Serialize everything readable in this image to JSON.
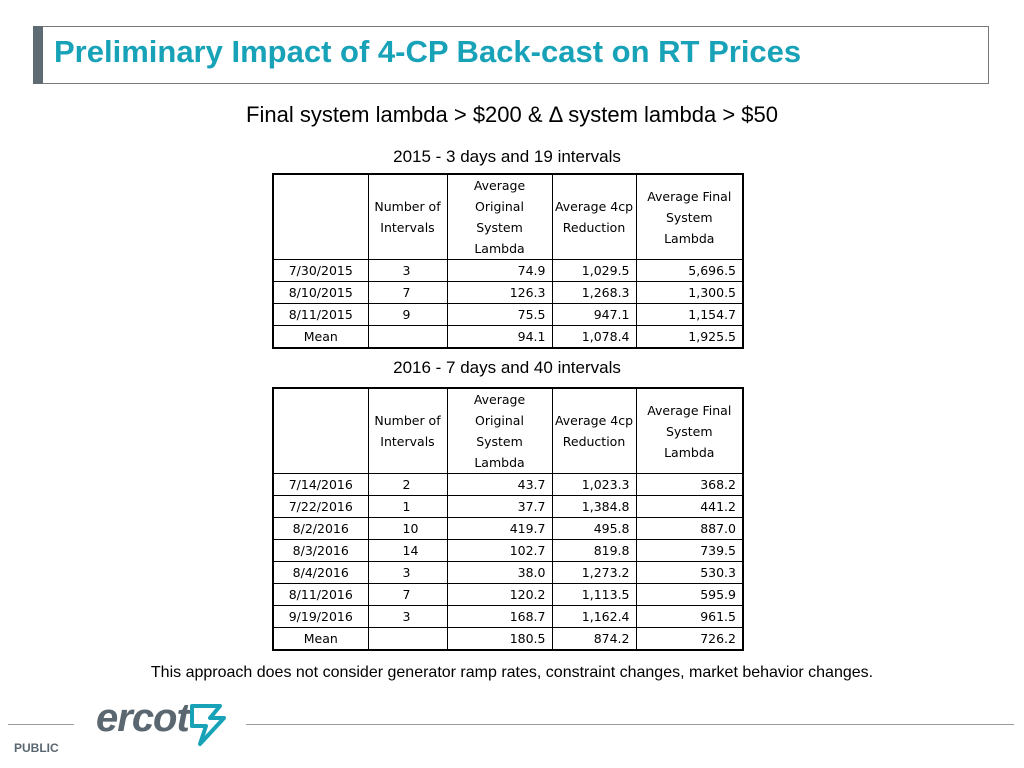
{
  "title": "Preliminary Impact of 4-CP Back-cast on RT Prices",
  "subtitle": "Final system lambda > $200 & Δ system lambda > $50",
  "table_headers": {
    "intervals": [
      "Number of",
      "Intervals"
    ],
    "avg_original": [
      "Average",
      "Original",
      "System Lambda"
    ],
    "avg_reduction": [
      "Average 4cp",
      "Reduction"
    ],
    "avg_final": [
      "Average Final",
      "System",
      "Lambda"
    ]
  },
  "sections": [
    {
      "heading": "2015 - 3 days and 19 intervals",
      "rows": [
        {
          "date": "7/30/2015",
          "intervals": "3",
          "original": "74.9",
          "reduction": "1,029.5",
          "final": "5,696.5"
        },
        {
          "date": "8/10/2015",
          "intervals": "7",
          "original": "126.3",
          "reduction": "1,268.3",
          "final": "1,300.5"
        },
        {
          "date": "8/11/2015",
          "intervals": "9",
          "original": "75.5",
          "reduction": "947.1",
          "final": "1,154.7"
        }
      ],
      "mean": {
        "label": "Mean",
        "original": "94.1",
        "reduction": "1,078.4",
        "final": "1,925.5"
      }
    },
    {
      "heading": "2016 - 7 days and 40 intervals",
      "rows": [
        {
          "date": "7/14/2016",
          "intervals": "2",
          "original": "43.7",
          "reduction": "1,023.3",
          "final": "368.2"
        },
        {
          "date": "7/22/2016",
          "intervals": "1",
          "original": "37.7",
          "reduction": "1,384.8",
          "final": "441.2"
        },
        {
          "date": "8/2/2016",
          "intervals": "10",
          "original": "419.7",
          "reduction": "495.8",
          "final": "887.0"
        },
        {
          "date": "8/3/2016",
          "intervals": "14",
          "original": "102.7",
          "reduction": "819.8",
          "final": "739.5"
        },
        {
          "date": "8/4/2016",
          "intervals": "3",
          "original": "38.0",
          "reduction": "1,273.2",
          "final": "530.3"
        },
        {
          "date": "8/11/2016",
          "intervals": "7",
          "original": "120.2",
          "reduction": "1,113.5",
          "final": "595.9"
        },
        {
          "date": "9/19/2016",
          "intervals": "3",
          "original": "168.7",
          "reduction": "1,162.4",
          "final": "961.5"
        }
      ],
      "mean": {
        "label": "Mean",
        "original": "180.5",
        "reduction": "874.2",
        "final": "726.2"
      }
    }
  ],
  "footnote": "This approach does not consider generator ramp rates, constraint changes, market behavior changes.",
  "logo": {
    "text": "ercot",
    "color": "#5a6670",
    "mark_color": "#17a2b8"
  },
  "classification": "PUBLIC",
  "colors": {
    "title": "#17a2b8",
    "accent_bar": "#5f6b73"
  }
}
